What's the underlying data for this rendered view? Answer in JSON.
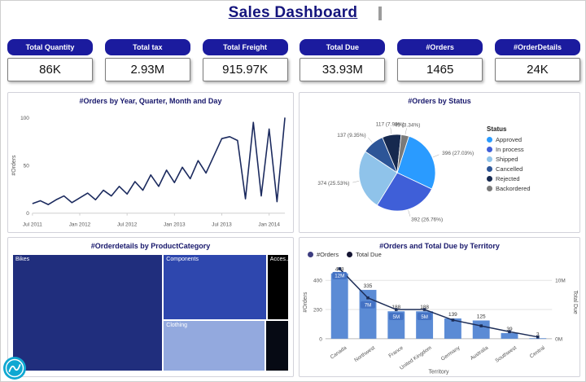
{
  "title": "Sales Dashboard",
  "kpis": [
    {
      "label": "Total Quantity",
      "value": "86K"
    },
    {
      "label": "Total tax",
      "value": "2.93M"
    },
    {
      "label": "Total Freight",
      "value": "915.97K"
    },
    {
      "label": "Total Due",
      "value": "33.93M"
    },
    {
      "label": "#Orders",
      "value": "1465"
    },
    {
      "label": "#OrderDetails",
      "value": "24K"
    }
  ],
  "colors": {
    "title_navy": "#14147d",
    "kpi_header_bg": "#1b1b9e",
    "panel_title": "#17176b",
    "line_series": "#1b2a5e",
    "bar_fill": "#5b8bd5",
    "combo_line": "#1d2d57",
    "label_box": "#4472c4",
    "logo_teal": "#0fa8d2"
  },
  "chart_data": [
    {
      "type": "line",
      "title": "#Orders by Year, Quarter, Month and Day",
      "ylabel": "#Orders",
      "ylim": [
        0,
        100
      ],
      "yticks": [
        0,
        50,
        100
      ],
      "x_tick_labels": [
        "Jul 2011",
        "Jan 2012",
        "Jul 2012",
        "Jan 2013",
        "Jul 2013",
        "Jan 2014"
      ],
      "values": [
        10,
        13,
        9,
        14,
        18,
        11,
        16,
        21,
        14,
        24,
        18,
        28,
        20,
        33,
        24,
        40,
        28,
        45,
        32,
        48,
        36,
        55,
        42,
        60,
        78,
        80,
        76,
        15,
        95,
        18,
        88,
        12,
        100
      ]
    },
    {
      "type": "pie",
      "title": "#Orders by Status",
      "legend_title": "Status",
      "slices": [
        {
          "label": "Approved",
          "value": 396,
          "pct": "27.03%",
          "color": "#2a9bff"
        },
        {
          "label": "In process",
          "value": 392,
          "pct": "26.76%",
          "color": "#3f5fd8"
        },
        {
          "label": "Shipped",
          "value": 374,
          "pct": "25.53%",
          "color": "#8fc3ea"
        },
        {
          "label": "Cancelled",
          "value": 137,
          "pct": "9.35%",
          "color": "#2d5597"
        },
        {
          "label": "Rejected",
          "value": 117,
          "pct": "7.99%",
          "color": "#16294f"
        },
        {
          "label": "Backordered",
          "value": 49,
          "pct": "3.34%",
          "color": "#7a7a7a"
        }
      ]
    },
    {
      "type": "treemap",
      "title": "#Orderdetails by ProductCategory",
      "items": [
        {
          "label": "Bikes",
          "color": "#202e7d",
          "rect": [
            0,
            0,
            0.545,
            1
          ]
        },
        {
          "label": "Components",
          "color": "#2e47ae",
          "rect": [
            0.545,
            0,
            0.375,
            0.565
          ]
        },
        {
          "label": "Acces...",
          "color": "#000000",
          "rect": [
            0.92,
            0,
            0.08,
            0.565
          ]
        },
        {
          "label": "Clothing",
          "color": "#93a9de",
          "rect": [
            0.545,
            0.565,
            0.37,
            0.435
          ]
        },
        {
          "label": "",
          "color": "#060a14",
          "rect": [
            0.915,
            0.565,
            0.085,
            0.435
          ]
        }
      ]
    },
    {
      "type": "bar-line-combo",
      "title": "#Orders and Total Due by Territory",
      "legend": [
        {
          "label": "#Orders",
          "color": "#3d3d80"
        },
        {
          "label": "Total Due",
          "color": "#141433"
        }
      ],
      "categories": [
        "Canada",
        "Northwest",
        "France",
        "United Kingdom",
        "Germany",
        "Australia",
        "Southwest",
        "Central"
      ],
      "bar_values": [
        448,
        335,
        188,
        188,
        139,
        125,
        39,
        3
      ],
      "bar_labels": [
        "448",
        "335",
        "188",
        "188",
        "139",
        "125",
        "39",
        "3"
      ],
      "line_values_m": [
        12,
        7,
        5,
        5,
        3.2,
        2.2,
        1.2,
        0.3
      ],
      "line_labels": [
        "12M",
        "7M",
        "5M",
        "5M",
        "",
        "",
        "",
        ""
      ],
      "xlabel": "Territory",
      "ylabel_left": "#Orders",
      "ylabel_right": "Total Due",
      "yticks_left": [
        0,
        200,
        400
      ],
      "yticks_right": [
        {
          "v": 0,
          "label": "0M"
        },
        {
          "v": 10,
          "label": "10M"
        }
      ],
      "ylim_left": [
        0,
        500
      ],
      "ylim_right_m": [
        0,
        12.5
      ]
    }
  ]
}
